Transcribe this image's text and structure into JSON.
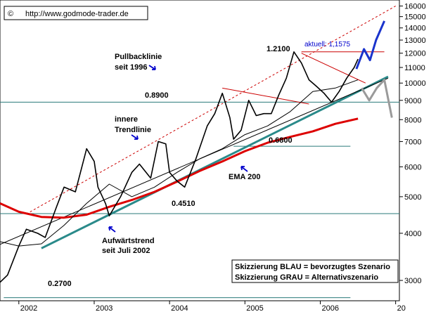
{
  "chart_data": {
    "type": "line",
    "source": "http://www.godmode-trader.de",
    "copyright_symbol": "©",
    "y_scale": "log",
    "ylim": [
      2650,
      16600
    ],
    "y_ticks": [
      16000,
      15000,
      14000,
      13000,
      12000,
      11000,
      10000,
      9000,
      8000,
      7000,
      6000,
      5000,
      4000,
      3000
    ],
    "xlim": [
      "2001-09",
      "2007-01"
    ],
    "x_ticks": [
      {
        "label": "2002",
        "t": 2002.0
      },
      {
        "label": "2003",
        "t": 2003.0
      },
      {
        "label": "2004",
        "t": 2004.0
      },
      {
        "label": "2005",
        "t": 2005.0
      },
      {
        "label": "2006",
        "t": 2006.0
      },
      {
        "label": "20",
        "t": 2007.0
      }
    ],
    "grid": false,
    "horizontal_levels": [
      {
        "label": "1.2100",
        "value": 12100
      },
      {
        "label": "0.8900",
        "value": 8900
      },
      {
        "label": "0.6800",
        "value": 6800
      },
      {
        "label": "0.4510",
        "value": 4510
      },
      {
        "label": "0.2700",
        "value": 2700
      }
    ],
    "current_label": "aktuell: 1,1575",
    "current_value": 11575,
    "annotations": [
      {
        "id": "pullback",
        "lines": [
          "Pullbacklinie",
          "seit 1996"
        ]
      },
      {
        "id": "inner",
        "lines": [
          "innere",
          "Trendlinie"
        ]
      },
      {
        "id": "ema",
        "lines": [
          "EMA 200"
        ]
      },
      {
        "id": "uptrend",
        "lines": [
          "Aufwärtstrend",
          "seit Juli 2002"
        ]
      }
    ],
    "legend_box": [
      "Skizzierung BLAU = bevorzugtes Szenario",
      "Skizzierung GRAU = Alternativszenario"
    ],
    "series": [
      {
        "name": "EMA 200",
        "color": "#dd0000",
        "x": [
          2001.75,
          2002.0,
          2002.3,
          2002.6,
          2002.9,
          2003.2,
          2003.5,
          2003.8,
          2004.1,
          2004.4,
          2004.7,
          2005.0,
          2005.3,
          2005.6,
          2005.9,
          2006.2,
          2006.5
        ],
        "y": [
          4800,
          4560,
          4420,
          4400,
          4480,
          4700,
          4900,
          5150,
          5480,
          5850,
          6200,
          6600,
          6950,
          7200,
          7450,
          7800,
          8050
        ]
      },
      {
        "name": "price",
        "color": "#000000",
        "x": [
          2001.7,
          2001.85,
          2002.0,
          2002.1,
          2002.25,
          2002.35,
          2002.5,
          2002.6,
          2002.75,
          2002.9,
          2003.0,
          2003.05,
          2003.15,
          2003.2,
          2003.35,
          2003.5,
          2003.6,
          2003.75,
          2003.85,
          2003.95,
          2004.0,
          2004.1,
          2004.2,
          2004.35,
          2004.5,
          2004.6,
          2004.7,
          2004.8,
          2004.85,
          2004.95,
          2005.05,
          2005.15,
          2005.25,
          2005.35,
          2005.45,
          2005.55,
          2005.65,
          2005.75,
          2005.85,
          2005.95,
          2006.05,
          2006.15,
          2006.25,
          2006.35,
          2006.45,
          2006.5
        ],
        "y": [
          2900,
          3100,
          3700,
          4100,
          4000,
          3900,
          4700,
          5300,
          5150,
          6700,
          6200,
          5300,
          4800,
          4450,
          5000,
          5800,
          6100,
          5600,
          7000,
          6900,
          5800,
          5500,
          5300,
          6300,
          7700,
          8300,
          9400,
          8100,
          7100,
          7500,
          9000,
          8200,
          8300,
          8300,
          9300,
          10300,
          12100,
          11300,
          10200,
          9800,
          9400,
          8900,
          9500,
          10300,
          11000,
          11575
        ]
      },
      {
        "name": "short average",
        "color": "#000000",
        "x": [
          2001.75,
          2002.0,
          2002.3,
          2002.6,
          2002.9,
          2003.2,
          2003.5,
          2003.8,
          2004.1,
          2004.4,
          2004.7,
          2005.0,
          2005.3,
          2005.6,
          2005.9,
          2006.2,
          2006.5
        ],
        "y": [
          3800,
          3700,
          3750,
          4200,
          4800,
          5400,
          5000,
          5300,
          5800,
          6300,
          6700,
          7300,
          7700,
          8400,
          9500,
          9700,
          10200
        ]
      }
    ],
    "trendlines": [
      {
        "id": "pullback",
        "style": "dashed",
        "color": "#cc0000",
        "from": {
          "t": 2002.1,
          "y": 4500
        },
        "to": {
          "t": 2007.0,
          "y": 16000
        }
      },
      {
        "id": "uptrend",
        "style": "solid",
        "color": "#2a8a8a",
        "from": {
          "t": 2002.3,
          "y": 3650
        },
        "to": {
          "t": 2006.9,
          "y": 10400
        }
      },
      {
        "id": "inner",
        "style": "solid",
        "color": "#000000",
        "from": {
          "t": 2001.7,
          "y": 3700
        },
        "to": {
          "t": 2006.9,
          "y": 10300
        }
      },
      {
        "id": "down1",
        "style": "solid",
        "color": "#cc0000",
        "from": {
          "t": 2004.7,
          "y": 9700
        },
        "to": {
          "t": 2005.85,
          "y": 8800
        }
      },
      {
        "id": "down2",
        "style": "solid",
        "color": "#cc0000",
        "from": {
          "t": 2005.75,
          "y": 12000
        },
        "to": {
          "t": 2006.6,
          "y": 10000
        }
      }
    ],
    "scenario_blue": {
      "color": "#1a33cc",
      "x": [
        2006.48,
        2006.58,
        2006.66,
        2006.74,
        2006.85
      ],
      "y": [
        10900,
        12300,
        11500,
        13000,
        14600
      ]
    },
    "scenario_gray": {
      "color": "#9a9a9a",
      "x": [
        2006.55,
        2006.65,
        2006.75,
        2006.85,
        2006.95
      ],
      "y": [
        9700,
        9000,
        9700,
        10200,
        8100
      ]
    }
  }
}
